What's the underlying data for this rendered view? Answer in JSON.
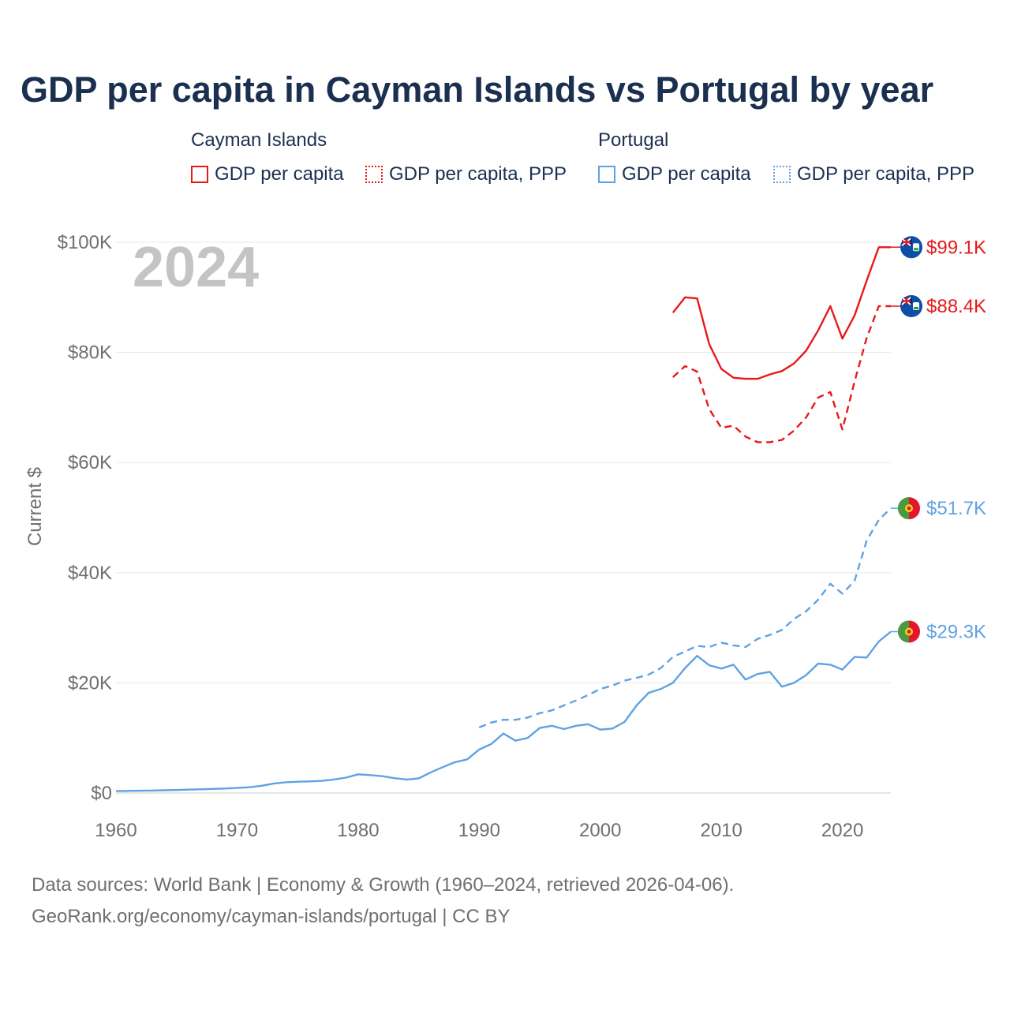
{
  "title": "GDP per capita in Cayman Islands vs Portugal by year",
  "legend": {
    "groups": [
      {
        "name": "Cayman Islands",
        "color": "#e8191b",
        "items": [
          {
            "label": "GDP per capita",
            "style": "solid"
          },
          {
            "label": "GDP per capita, PPP",
            "style": "dotted"
          }
        ]
      },
      {
        "name": "Portugal",
        "color": "#5fa2e3",
        "items": [
          {
            "label": "GDP per capita",
            "style": "solid"
          },
          {
            "label": "GDP per capita, PPP",
            "style": "dotted"
          }
        ]
      }
    ]
  },
  "year_label": "2024",
  "sources": {
    "line1": "Data sources: World Bank | Economy & Growth (1960–2024, retrieved 2026-04-06).",
    "line2": "GeoRank.org/economy/cayman-islands/portugal | CC BY"
  },
  "chart_data": {
    "type": "line",
    "title": "GDP per capita in Cayman Islands vs Portugal by year",
    "xlabel": "",
    "ylabel": "Current $",
    "xlim": [
      1960,
      2024
    ],
    "ylim": [
      0,
      100000
    ],
    "x_ticks": [
      1960,
      1970,
      1980,
      1990,
      2000,
      2010,
      2020
    ],
    "x_tick_labels": [
      "1960",
      "1970",
      "1980",
      "1990",
      "2000",
      "2010",
      "2020"
    ],
    "y_ticks": [
      0,
      20000,
      40000,
      60000,
      80000,
      100000
    ],
    "y_tick_labels": [
      "$0",
      "$20K",
      "$40K",
      "$60K",
      "$80K",
      "$100K"
    ],
    "grid": true,
    "legend_position": "top",
    "series": [
      {
        "name": "Cayman Islands GDP per capita",
        "color": "#e8191b",
        "dash": "solid",
        "end_label": "$99.1K",
        "flag": "cayman",
        "x": [
          2006,
          2007,
          2008,
          2009,
          2010,
          2011,
          2012,
          2013,
          2014,
          2015,
          2016,
          2017,
          2018,
          2019,
          2020,
          2021,
          2022,
          2023,
          2024
        ],
        "values": [
          87200,
          90000,
          89800,
          81500,
          77000,
          75400,
          75200,
          75200,
          76000,
          76600,
          78000,
          80300,
          84000,
          88400,
          82500,
          86700,
          93000,
          99100,
          99100
        ]
      },
      {
        "name": "Cayman Islands GDP per capita, PPP",
        "color": "#e8191b",
        "dash": "dashed",
        "end_label": "$88.4K",
        "flag": "cayman",
        "x": [
          2006,
          2007,
          2008,
          2009,
          2010,
          2011,
          2012,
          2013,
          2014,
          2015,
          2016,
          2017,
          2018,
          2019,
          2020,
          2021,
          2022,
          2023,
          2024
        ],
        "values": [
          75500,
          77500,
          76500,
          69700,
          66300,
          66700,
          64700,
          63700,
          63700,
          64100,
          65800,
          68200,
          71800,
          72800,
          66000,
          74700,
          82600,
          88400,
          88400
        ]
      },
      {
        "name": "Portugal GDP per capita, PPP",
        "color": "#5fa2e3",
        "dash": "dashed",
        "end_label": "$51.7K",
        "flag": "portugal",
        "x": [
          1990,
          1991,
          1992,
          1993,
          1994,
          1995,
          1996,
          1997,
          1998,
          1999,
          2000,
          2001,
          2002,
          2003,
          2004,
          2005,
          2006,
          2007,
          2008,
          2009,
          2010,
          2011,
          2012,
          2013,
          2014,
          2015,
          2016,
          2017,
          2018,
          2019,
          2020,
          2021,
          2022,
          2023,
          2024
        ],
        "values": [
          11900,
          12800,
          13300,
          13300,
          13700,
          14500,
          15000,
          15900,
          16800,
          17800,
          18900,
          19500,
          20400,
          20900,
          21500,
          22700,
          24700,
          25700,
          26700,
          26500,
          27300,
          26800,
          26500,
          28000,
          28700,
          29600,
          31600,
          33000,
          35100,
          38000,
          36200,
          38500,
          45800,
          49600,
          51700
        ]
      },
      {
        "name": "Portugal GDP per capita",
        "color": "#5fa2e3",
        "dash": "solid",
        "end_label": "$29.3K",
        "flag": "portugal",
        "x": [
          1960,
          1961,
          1962,
          1963,
          1964,
          1965,
          1966,
          1967,
          1968,
          1969,
          1970,
          1971,
          1972,
          1973,
          1974,
          1975,
          1976,
          1977,
          1978,
          1979,
          1980,
          1981,
          1982,
          1983,
          1984,
          1985,
          1986,
          1987,
          1988,
          1989,
          1990,
          1991,
          1992,
          1993,
          1994,
          1995,
          1996,
          1997,
          1998,
          1999,
          2000,
          2001,
          2002,
          2003,
          2004,
          2005,
          2006,
          2007,
          2008,
          2009,
          2010,
          2011,
          2012,
          2013,
          2014,
          2015,
          2016,
          2017,
          2018,
          2019,
          2020,
          2021,
          2022,
          2023,
          2024
        ],
        "values": [
          350,
          380,
          410,
          450,
          500,
          550,
          610,
          680,
          750,
          820,
          920,
          1050,
          1300,
          1700,
          1950,
          2050,
          2100,
          2200,
          2450,
          2800,
          3400,
          3250,
          3050,
          2700,
          2450,
          2650,
          3750,
          4700,
          5600,
          6100,
          7900,
          8900,
          10800,
          9500,
          10000,
          11800,
          12200,
          11600,
          12200,
          12500,
          11500,
          11700,
          12900,
          15900,
          18200,
          18900,
          20000,
          22700,
          24900,
          23200,
          22600,
          23300,
          20600,
          21600,
          22000,
          19300,
          20000,
          21400,
          23500,
          23300,
          22400,
          24700,
          24600,
          27500,
          29300
        ]
      }
    ]
  }
}
